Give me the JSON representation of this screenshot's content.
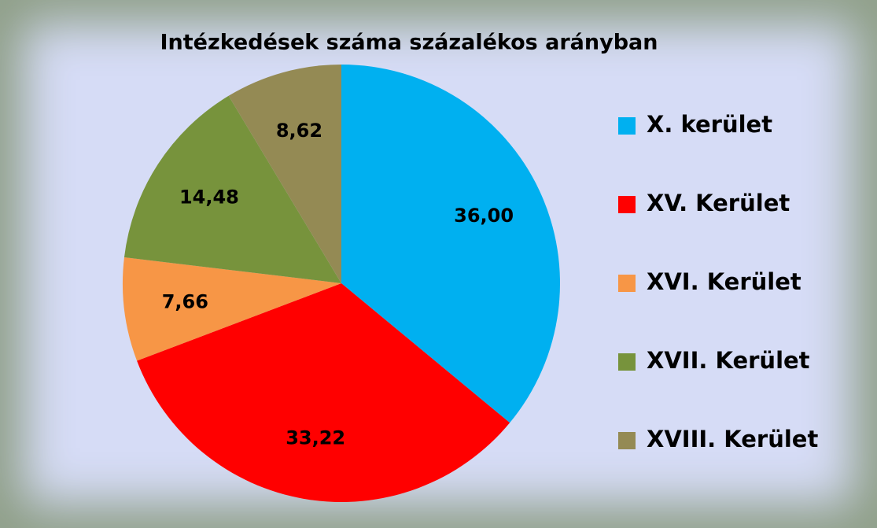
{
  "chart_data": {
    "type": "pie",
    "title": "Intézkedések száma százalékos arányban",
    "categories": [
      "X. kerület",
      "XV. Kerület",
      "XVI. Kerület",
      "XVII. Kerület",
      "XVIII. Kerület"
    ],
    "values": [
      36.0,
      33.22,
      7.66,
      14.48,
      8.62
    ],
    "value_labels": [
      "36,00",
      "33,22",
      "7,66",
      "14,48",
      "8,62"
    ],
    "colors": [
      "#00b0f0",
      "#ff0000",
      "#f79646",
      "#77933c",
      "#948a54"
    ],
    "legend": "right"
  }
}
